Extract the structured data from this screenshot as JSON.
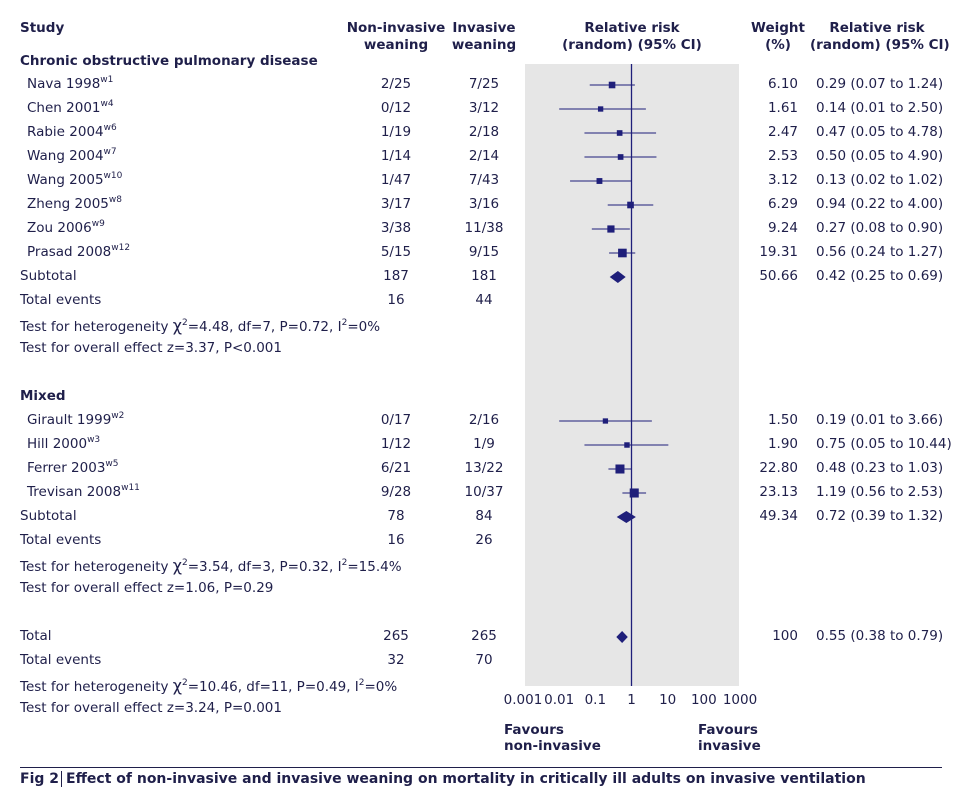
{
  "headers": {
    "study": "Study",
    "noninv": [
      "Non-invasive",
      "weaning"
    ],
    "inv": [
      "Invasive",
      "weaning"
    ],
    "rr_plot": [
      "Relative risk",
      "(random) (95% CI)"
    ],
    "weight": [
      "Weight",
      "(%)"
    ],
    "rr_text": [
      "Relative risk",
      "(random) (95% CI)"
    ]
  },
  "sections": [
    {
      "title": "Chronic obstructive pulmonary disease",
      "studies": [
        {
          "name": "Nava 1998",
          "ref": "w1",
          "noninv": "2/25",
          "inv": "7/25",
          "weight": "6.10",
          "ci_text": "0.29 (0.07 to 1.24)"
        },
        {
          "name": "Chen 2001",
          "ref": "w4",
          "noninv": "0/12",
          "inv": "3/12",
          "weight": "1.61",
          "ci_text": "0.14 (0.01 to 2.50)"
        },
        {
          "name": "Rabie 2004",
          "ref": "w6",
          "noninv": "1/19",
          "inv": "2/18",
          "weight": "2.47",
          "ci_text": "0.47 (0.05 to 4.78)"
        },
        {
          "name": "Wang 2004",
          "ref": "w7",
          "noninv": "1/14",
          "inv": "2/14",
          "weight": "2.53",
          "ci_text": "0.50 (0.05 to 4.90)"
        },
        {
          "name": "Wang 2005",
          "ref": "w10",
          "noninv": "1/47",
          "inv": "7/43",
          "weight": "3.12",
          "ci_text": "0.13 (0.02 to 1.02)"
        },
        {
          "name": "Zheng 2005",
          "ref": "w8",
          "noninv": "3/17",
          "inv": "3/16",
          "weight": "6.29",
          "ci_text": "0.94 (0.22 to 4.00)"
        },
        {
          "name": "Zou 2006",
          "ref": "w9",
          "noninv": "3/38",
          "inv": "11/38",
          "weight": "9.24",
          "ci_text": "0.27 (0.08 to 0.90)"
        },
        {
          "name": "Prasad 2008",
          "ref": "w12",
          "noninv": "5/15",
          "inv": "9/15",
          "weight": "19.31",
          "ci_text": "0.56 (0.24 to 1.27)"
        }
      ],
      "subtotal": {
        "label": "Subtotal",
        "noninv": "187",
        "inv": "181",
        "weight": "50.66",
        "ci_text": "0.42 (0.25 to 0.69)"
      },
      "events": {
        "label": "Total events",
        "noninv": "16",
        "inv": "44"
      },
      "heterogeneity": {
        "prefix": "Test for heterogeneity ",
        "chi": "χ",
        "exp": "2",
        "mid": "=4.48, df=7, P=0.72, I",
        "i2exp": "2",
        "tail": "=0%"
      },
      "overall": "Test for overall effect z=3.37, P<0.001"
    },
    {
      "title": "Mixed",
      "studies": [
        {
          "name": "Girault 1999",
          "ref": "w2",
          "noninv": "0/17",
          "inv": "2/16",
          "weight": "1.50",
          "ci_text": "0.19 (0.01 to 3.66)"
        },
        {
          "name": "Hill 2000",
          "ref": "w3",
          "noninv": "1/12",
          "inv": "1/9",
          "weight": "1.90",
          "ci_text": "0.75 (0.05 to 10.44)"
        },
        {
          "name": "Ferrer 2003",
          "ref": "w5",
          "noninv": "6/21",
          "inv": "13/22",
          "weight": "22.80",
          "ci_text": "0.48 (0.23 to 1.03)"
        },
        {
          "name": "Trevisan 2008",
          "ref": "w11",
          "noninv": "9/28",
          "inv": "10/37",
          "weight": "23.13",
          "ci_text": "1.19 (0.56 to 2.53)"
        }
      ],
      "subtotal": {
        "label": "Subtotal",
        "noninv": "78",
        "inv": "84",
        "weight": "49.34",
        "ci_text": "0.72 (0.39 to 1.32)"
      },
      "events": {
        "label": "Total events",
        "noninv": "16",
        "inv": "26"
      },
      "heterogeneity": {
        "prefix": "Test for heterogeneity ",
        "chi": "χ",
        "exp": "2",
        "mid": "=3.54, df=3, P=0.32, I",
        "i2exp": "2",
        "tail": "=15.4%"
      },
      "overall": "Test for overall effect z=1.06, P=0.29"
    }
  ],
  "total": {
    "label": "Total",
    "noninv": "265",
    "inv": "265",
    "weight": "100",
    "ci_text": "0.55 (0.38 to 0.79)"
  },
  "total_events": {
    "label": "Total events",
    "noninv": "32",
    "inv": "70"
  },
  "total_heterogeneity": {
    "prefix": "Test for heterogeneity ",
    "chi": "χ",
    "exp": "2",
    "mid": "=10.46, df=11, P=0.49, I",
    "i2exp": "2",
    "tail": "=0%"
  },
  "total_overall": "Test for overall effect z=3.24, P=0.001",
  "axis": {
    "ticks": [
      "0.001",
      "0.01",
      "0.1",
      "1",
      "10",
      "100",
      "1000"
    ]
  },
  "favours": {
    "left": [
      "Favours",
      "non-invasive"
    ],
    "right": [
      "Favours",
      "invasive"
    ]
  },
  "caption": {
    "fig": "Fig 2",
    "text": "Effect of non-invasive and invasive weaning on mortality in critically ill adults on invasive ventilation"
  },
  "colors": {
    "marker": "#1f1f7a",
    "text": "#1f1f4a",
    "plot_bg": "#e6e6e6"
  },
  "chart_data": {
    "type": "forest",
    "scale": "log",
    "xlim": [
      0.001,
      1000
    ],
    "reference_line": 1,
    "series": [
      {
        "name": "Nava 1998",
        "rr": 0.29,
        "lo": 0.07,
        "hi": 1.24,
        "weight": 6.1
      },
      {
        "name": "Chen 2001",
        "rr": 0.14,
        "lo": 0.01,
        "hi": 2.5,
        "weight": 1.61
      },
      {
        "name": "Rabie 2004",
        "rr": 0.47,
        "lo": 0.05,
        "hi": 4.78,
        "weight": 2.47
      },
      {
        "name": "Wang 2004",
        "rr": 0.5,
        "lo": 0.05,
        "hi": 4.9,
        "weight": 2.53
      },
      {
        "name": "Wang 2005",
        "rr": 0.13,
        "lo": 0.02,
        "hi": 1.02,
        "weight": 3.12
      },
      {
        "name": "Zheng 2005",
        "rr": 0.94,
        "lo": 0.22,
        "hi": 4.0,
        "weight": 6.29
      },
      {
        "name": "Zou 2006",
        "rr": 0.27,
        "lo": 0.08,
        "hi": 0.9,
        "weight": 9.24
      },
      {
        "name": "Prasad 2008",
        "rr": 0.56,
        "lo": 0.24,
        "hi": 1.27,
        "weight": 19.31
      },
      {
        "name": "Subtotal",
        "rr": 0.42,
        "lo": 0.25,
        "hi": 0.69,
        "weight": 50.66,
        "summary": true
      },
      {
        "name": "Girault 1999",
        "rr": 0.19,
        "lo": 0.01,
        "hi": 3.66,
        "weight": 1.5
      },
      {
        "name": "Hill 2000",
        "rr": 0.75,
        "lo": 0.05,
        "hi": 10.44,
        "weight": 1.9
      },
      {
        "name": "Ferrer 2003",
        "rr": 0.48,
        "lo": 0.23,
        "hi": 1.03,
        "weight": 22.8
      },
      {
        "name": "Trevisan 2008",
        "rr": 1.19,
        "lo": 0.56,
        "hi": 2.53,
        "weight": 23.13
      },
      {
        "name": "Subtotal",
        "rr": 0.72,
        "lo": 0.39,
        "hi": 1.32,
        "weight": 49.34,
        "summary": true
      },
      {
        "name": "Total",
        "rr": 0.55,
        "lo": 0.38,
        "hi": 0.79,
        "weight": 100,
        "summary": true
      }
    ]
  }
}
